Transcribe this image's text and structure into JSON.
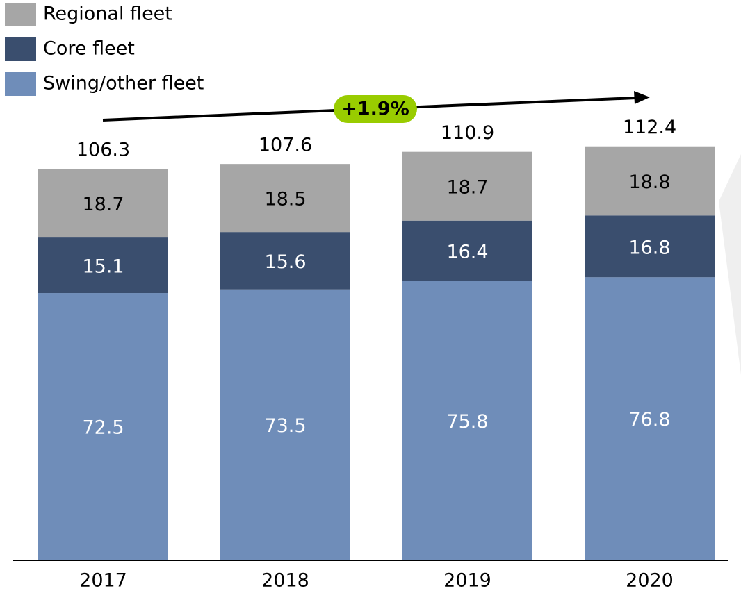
{
  "chart_data": {
    "type": "stacked_bar",
    "categories": [
      "2017",
      "2018",
      "2019",
      "2020"
    ],
    "series": [
      {
        "name": "Swing/other fleet",
        "color": "#6f8db9",
        "values": [
          72.5,
          73.5,
          75.8,
          76.8
        ]
      },
      {
        "name": "Core fleet",
        "color": "#3a4e6e",
        "values": [
          15.1,
          15.6,
          16.4,
          16.8
        ]
      },
      {
        "name": "Regional fleet",
        "color": "#a6a6a6",
        "values": [
          18.7,
          18.5,
          18.7,
          18.8
        ]
      }
    ],
    "totals": [
      106.3,
      107.6,
      110.9,
      112.4
    ],
    "annotation": "+1.9%"
  }
}
